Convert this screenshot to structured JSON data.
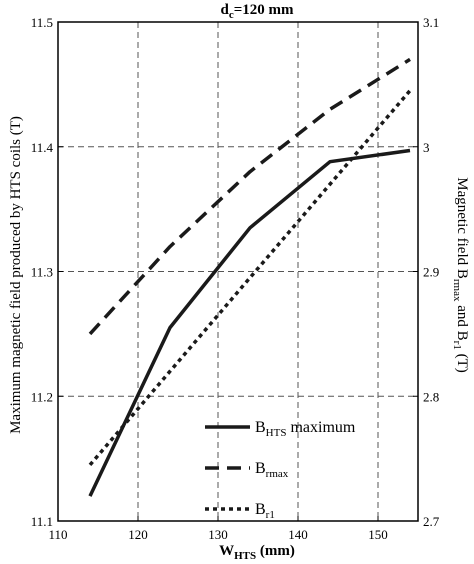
{
  "chart_data": {
    "type": "line",
    "title": {
      "main": "d",
      "sub": "c",
      "rest": "=120 mm"
    },
    "xlabel": {
      "main": "W",
      "sub": "HTS",
      "rest": " (mm)"
    },
    "ylabel_left": "Maximum magnetic field produced by HTS coils (T)",
    "ylabel_right": {
      "pre": "Magnetic field B",
      "sub1": "rmax",
      "mid": " and B",
      "sub2": "r1",
      "post": " (T)"
    },
    "xlim": [
      110,
      155
    ],
    "ylim_left": [
      11.1,
      11.5
    ],
    "ylim_right": [
      2.7,
      3.1
    ],
    "xticks": [
      "110",
      "120",
      "130",
      "140",
      "150"
    ],
    "yticks_left": [
      "11.1",
      "11.2",
      "11.3",
      "11.4",
      "11.5"
    ],
    "yticks_right": [
      "2.7",
      "2.8",
      "2.9",
      "3",
      "3.1"
    ],
    "grid": true,
    "legend_position": "lower-right",
    "series": [
      {
        "name": {
          "main": "B",
          "sub": "HTS",
          "rest": " maximum"
        },
        "axis": "left",
        "style": "solid",
        "x": [
          114,
          124,
          134,
          144,
          154
        ],
        "y": [
          11.12,
          11.255,
          11.335,
          11.388,
          11.397
        ]
      },
      {
        "name": {
          "main": "B",
          "sub": "rmax",
          "rest": ""
        },
        "axis": "right",
        "style": "dashed",
        "x": [
          114,
          124,
          134,
          144,
          154
        ],
        "y": [
          2.85,
          2.92,
          2.98,
          3.03,
          3.07
        ]
      },
      {
        "name": {
          "main": "B",
          "sub": "r1",
          "rest": ""
        },
        "axis": "right",
        "style": "dotted",
        "x": [
          114,
          124,
          134,
          144,
          154
        ],
        "y": [
          2.745,
          2.82,
          2.895,
          2.97,
          3.045
        ]
      }
    ]
  }
}
